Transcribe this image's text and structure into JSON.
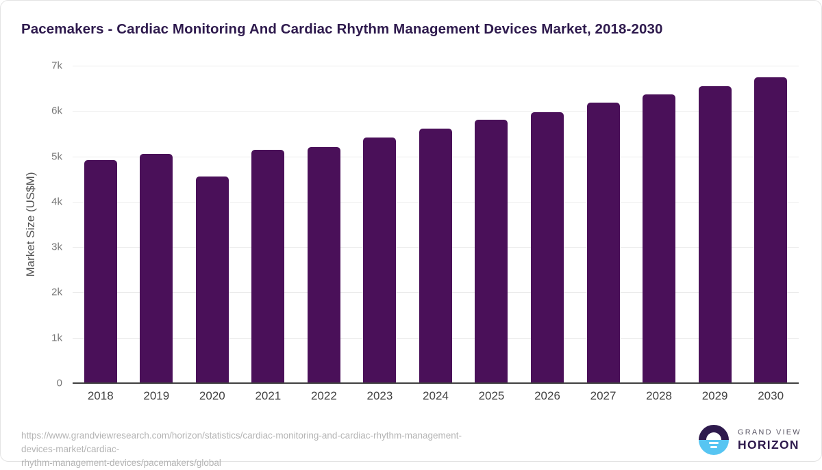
{
  "page": {
    "title": "Pacemakers - Cardiac Monitoring And Cardiac Rhythm Management Devices Market, 2018-2030"
  },
  "chart_data": {
    "type": "bar",
    "title": "Pacemakers - Cardiac Monitoring And Cardiac Rhythm Management Devices Market, 2018-2030",
    "categories": [
      "2018",
      "2019",
      "2020",
      "2021",
      "2022",
      "2023",
      "2024",
      "2025",
      "2026",
      "2027",
      "2028",
      "2029",
      "2030"
    ],
    "values": [
      4920,
      5050,
      4560,
      5150,
      5210,
      5410,
      5610,
      5810,
      5970,
      6180,
      6360,
      6550,
      6740
    ],
    "series_name": "Market Size",
    "xlabel": "",
    "ylabel": "Market Size (US$M)",
    "ylim": [
      0,
      7000
    ],
    "yticks": [
      {
        "value": 0,
        "label": "0"
      },
      {
        "value": 1000,
        "label": "1k"
      },
      {
        "value": 2000,
        "label": "2k"
      },
      {
        "value": 3000,
        "label": "3k"
      },
      {
        "value": 4000,
        "label": "4k"
      },
      {
        "value": 5000,
        "label": "5k"
      },
      {
        "value": 6000,
        "label": "6k"
      },
      {
        "value": 7000,
        "label": "7k"
      }
    ],
    "grid": true,
    "legend": false,
    "bar_color": "#4a1059"
  },
  "colors": {
    "bar": "#4a1059",
    "title": "#2e1a4d",
    "grid_line": "#ebebeb",
    "axis_line": "#3f3f3f",
    "y_tick": "#787878",
    "x_tick": "#424242",
    "axis_title": "#565656",
    "url_text": "#b4b4b4",
    "logo_blue": "#57c5f2",
    "logo_purple": "#2e1a4d",
    "logo_gray": "#5b5766",
    "frame_border": "#e3e3e3"
  },
  "footer": {
    "url_line1": "https://www.grandviewresearch.com/horizon/statistics/cardiac-monitoring-and-cardiac-rhythm-management-devices-market/cardiac-",
    "url_line2": "rhythm-management-devices/pacemakers/global",
    "logo_text_top": "GRAND VIEW",
    "logo_text_bottom": "HORIZON"
  }
}
